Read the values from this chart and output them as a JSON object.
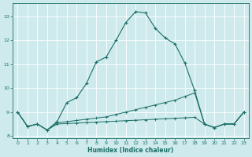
{
  "title": "",
  "xlabel": "Humidex (Indice chaleur)",
  "background_color": "#ceeaed",
  "grid_color": "#ffffff",
  "line_color": "#1a6e65",
  "xlim": [
    -0.5,
    23.5
  ],
  "ylim": [
    7.9,
    13.55
  ],
  "yticks": [
    8,
    9,
    10,
    11,
    12,
    13
  ],
  "xticks": [
    0,
    1,
    2,
    3,
    4,
    5,
    6,
    7,
    8,
    9,
    10,
    11,
    12,
    13,
    14,
    15,
    16,
    17,
    18,
    19,
    20,
    21,
    22,
    23
  ],
  "line1_x": [
    0,
    1,
    2,
    3,
    4,
    5,
    6,
    7,
    8,
    9,
    10,
    11,
    12,
    13,
    14,
    15,
    16,
    17,
    18,
    19,
    20,
    21,
    22,
    23
  ],
  "line1_y": [
    9.0,
    8.4,
    8.5,
    8.25,
    8.6,
    9.4,
    9.6,
    10.2,
    11.1,
    11.3,
    12.0,
    12.75,
    13.2,
    13.15,
    12.5,
    12.1,
    11.85,
    11.05,
    9.9,
    8.5,
    8.35,
    8.5,
    8.5,
    9.0
  ],
  "line2_x": [
    0,
    1,
    2,
    3,
    4,
    5,
    6,
    7,
    8,
    9,
    10,
    11,
    12,
    13,
    14,
    15,
    16,
    17,
    18,
    19,
    20,
    21,
    22,
    23
  ],
  "line2_y": [
    9.0,
    8.4,
    8.5,
    8.25,
    8.55,
    8.6,
    8.65,
    8.7,
    8.75,
    8.8,
    8.9,
    9.0,
    9.1,
    9.2,
    9.3,
    9.4,
    9.5,
    9.65,
    9.8,
    8.5,
    8.35,
    8.5,
    8.5,
    9.0
  ],
  "line3_x": [
    0,
    1,
    2,
    3,
    4,
    5,
    6,
    7,
    8,
    9,
    10,
    11,
    12,
    13,
    14,
    15,
    16,
    17,
    18,
    19,
    20,
    21,
    22,
    23
  ],
  "line3_y": [
    9.0,
    8.4,
    8.5,
    8.25,
    8.5,
    8.52,
    8.54,
    8.56,
    8.58,
    8.6,
    8.62,
    8.64,
    8.66,
    8.68,
    8.7,
    8.72,
    8.74,
    8.76,
    8.78,
    8.5,
    8.35,
    8.5,
    8.5,
    9.0
  ]
}
